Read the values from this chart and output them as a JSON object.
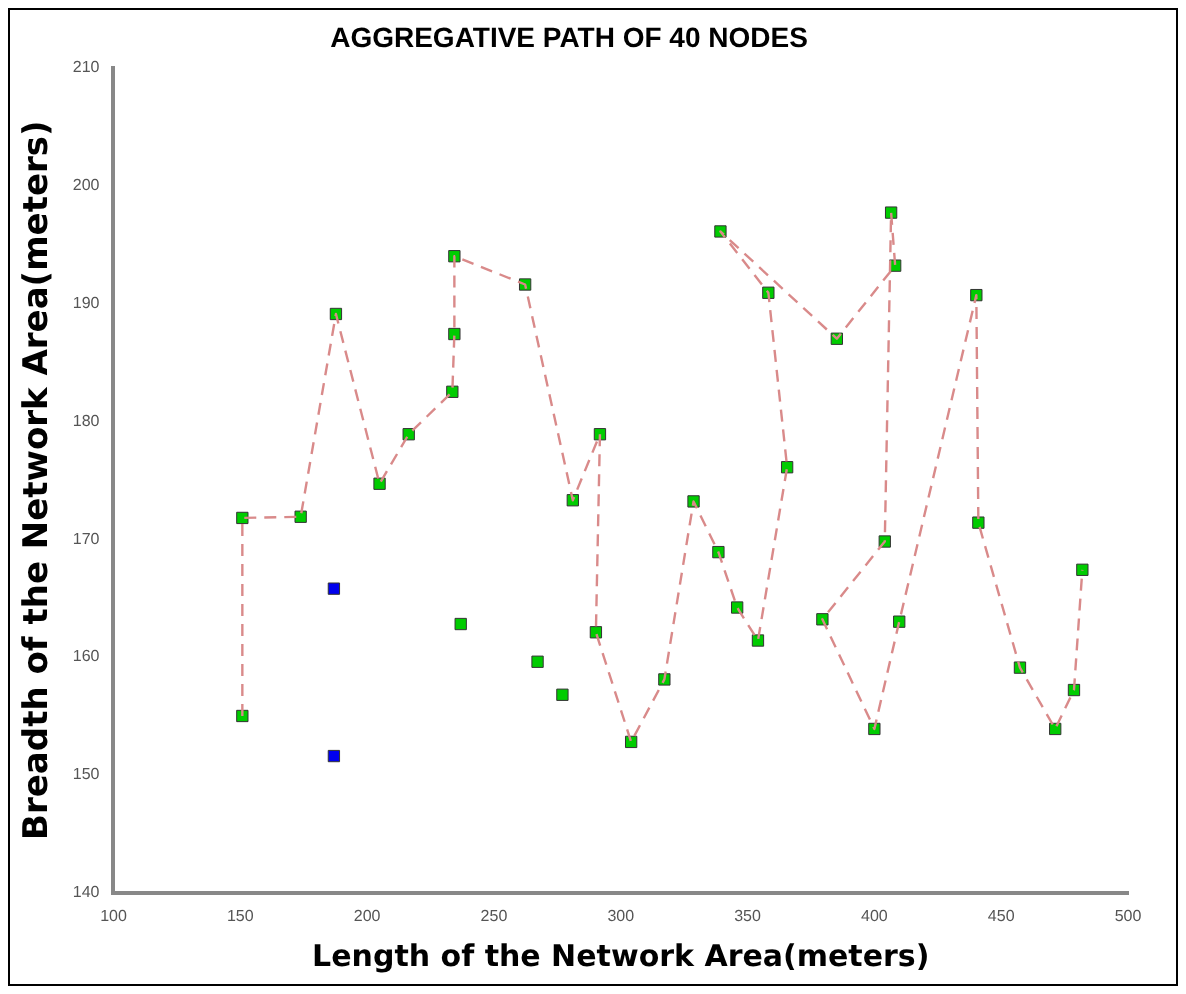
{
  "chart_data": {
    "type": "scatter",
    "title": "AGGREGATIVE PATH OF 40 NODES",
    "xlabel": "Length of the Network Area(meters)",
    "ylabel": "Breadth of the Network Area(meters)",
    "xlim": [
      100,
      500
    ],
    "xticks": [
      100,
      150,
      200,
      250,
      300,
      350,
      400,
      450,
      500
    ],
    "ylim": [
      140,
      210
    ],
    "yticks": [
      140,
      150,
      160,
      170,
      180,
      190,
      200,
      210
    ],
    "grid": false,
    "legend": false,
    "series": [
      {
        "type": "line",
        "color": "#d98a8a",
        "line_style": "dashed",
        "marker": "none",
        "x": [
          150.8,
          150.8,
          173.8,
          187.7,
          204.9,
          216.4,
          233.6,
          234.4,
          234.4,
          262.3,
          281.1,
          291.8,
          290.2,
          304.1,
          317.2,
          328.7,
          338.5,
          345.9,
          354.1,
          365.6,
          358.2,
          339.3,
          385.2,
          408.2,
          406.6,
          404.1,
          379.5,
          400,
          409.8,
          440.2,
          441,
          457.4,
          471.3,
          478.7,
          482
        ],
        "values": [
          155,
          171.8,
          171.9,
          189.1,
          174.7,
          178.9,
          182.5,
          187.4,
          194,
          191.6,
          173.3,
          178.9,
          162.1,
          152.8,
          158.1,
          173.2,
          168.9,
          164.2,
          161.4,
          176.1,
          190.9,
          196.1,
          187,
          193.2,
          197.7,
          169.8,
          163.2,
          153.9,
          163,
          190.7,
          171.4,
          159.1,
          153.9,
          157.2,
          167.4
        ]
      },
      {
        "color": "#00cc00",
        "marker": "square",
        "x": [
          150.8,
          150.8,
          173.8,
          187.7,
          204.9,
          216.4,
          233.6,
          234.4,
          234.4,
          262.3,
          281.1,
          291.8,
          236.9,
          267.2,
          277,
          290.2,
          304.1,
          317.2,
          328.7,
          338.5,
          345.9,
          354.1,
          365.6,
          339.3,
          358.2,
          385.2,
          406.6,
          408.2,
          379.5,
          404.1,
          409.8,
          400,
          440.2,
          441,
          457.4,
          471.3,
          478.7,
          482
        ],
        "values": [
          155,
          171.8,
          171.9,
          189.1,
          174.7,
          178.9,
          182.5,
          187.4,
          194,
          191.6,
          173.3,
          178.9,
          162.8,
          159.6,
          156.8,
          162.1,
          152.8,
          158.1,
          173.2,
          168.9,
          164.2,
          161.4,
          176.1,
          196.1,
          190.9,
          187,
          197.7,
          193.2,
          163.2,
          169.8,
          163,
          153.9,
          190.7,
          171.4,
          159.1,
          153.9,
          157.2,
          167.4
        ]
      },
      {
        "color": "#0000ee",
        "marker": "square",
        "x": [
          186.9,
          186.9
        ],
        "values": [
          165.8,
          151.6
        ]
      }
    ]
  }
}
